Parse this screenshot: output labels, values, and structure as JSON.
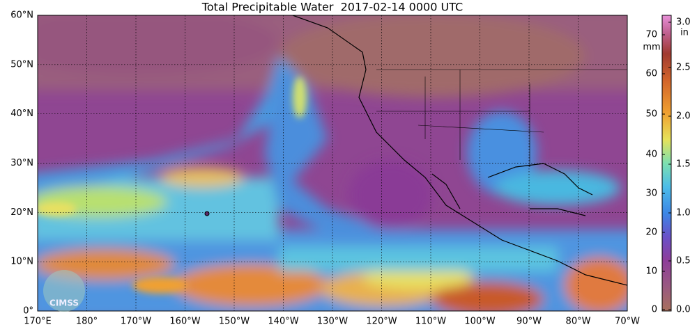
{
  "title": "Total Precipitable Water  2017-02-14 0000 UTC",
  "latitude_labels": [
    "60°N",
    "50°N",
    "40°N",
    "30°N",
    "20°N",
    "10°N",
    "0°"
  ],
  "longitude_labels": [
    "170°E",
    "180°",
    "170°W",
    "160°W",
    "150°W",
    "140°W",
    "130°W",
    "120°W",
    "110°W",
    "100°W",
    "90°W",
    "80°W",
    "70°W"
  ],
  "colorbar": {
    "mm_unit": "mm",
    "mm_labels": [
      "70",
      "60",
      "50",
      "40",
      "30",
      "20",
      "10",
      "0"
    ],
    "in_unit": "in",
    "in_labels": [
      "3.0",
      "2.5",
      "2.0",
      "1.5",
      "1.0",
      "0.5",
      "0.0"
    ]
  },
  "logo": "CIMSS"
}
